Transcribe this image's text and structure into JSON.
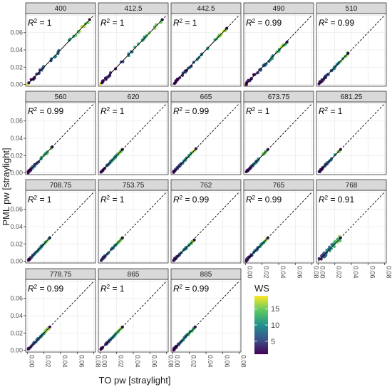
{
  "chart_data": {
    "type": "scatter",
    "layout": "faceted",
    "xlabel": "TO pw [straylight]",
    "ylabel": "PML pw [straylight]",
    "xlim": [
      -0.002,
      0.082
    ],
    "ylim": [
      -0.002,
      0.082
    ],
    "tick_values": [
      0,
      0.02,
      0.04,
      0.06,
      0.08
    ],
    "tick_labels": [
      "0.00",
      "0.02",
      "0.04",
      "0.06",
      "0.08"
    ],
    "y_tick_values": [
      0,
      0.02,
      0.04,
      0.06
    ],
    "y_tick_labels": [
      "0.00",
      "0.02",
      "0.04",
      "0.06"
    ],
    "grid": true,
    "identity_line": "dashed",
    "fit_line": "solid",
    "color_legend": {
      "title": "WS",
      "ticks": [
        5,
        10,
        15
      ],
      "range": [
        1,
        19
      ],
      "colors": [
        "#440154",
        "#3b528b",
        "#21918c",
        "#5ec962",
        "#fde725"
      ]
    },
    "panels": [
      {
        "label": "400",
        "r2": "1",
        "extent": 0.075,
        "slope": 1.0,
        "noise": 0.0015,
        "hasLow": true
      },
      {
        "label": "412.5",
        "r2": "1",
        "extent": 0.075,
        "slope": 1.0,
        "noise": 0.0015,
        "hasLow": true
      },
      {
        "label": "442.5",
        "r2": "1",
        "extent": 0.065,
        "slope": 1.0,
        "noise": 0.0012,
        "hasLow": false
      },
      {
        "label": "490",
        "r2": "0.99",
        "extent": 0.05,
        "slope": 0.98,
        "noise": 0.0015,
        "hasLow": true
      },
      {
        "label": "510",
        "r2": "0.99",
        "extent": 0.036,
        "slope": 1.0,
        "noise": 0.0012,
        "hasLow": false
      },
      {
        "label": "560",
        "r2": "0.99",
        "extent": 0.03,
        "slope": 1.0,
        "noise": 0.001,
        "hasLow": false
      },
      {
        "label": "620",
        "r2": "1",
        "extent": 0.027,
        "slope": 1.0,
        "noise": 0.0008,
        "hasLow": false
      },
      {
        "label": "665",
        "r2": "0.99",
        "extent": 0.028,
        "slope": 1.0,
        "noise": 0.0008,
        "hasLow": false
      },
      {
        "label": "673.75",
        "r2": "1",
        "extent": 0.027,
        "slope": 1.0,
        "noise": 0.0008,
        "hasLow": false
      },
      {
        "label": "681.25",
        "r2": "1",
        "extent": 0.027,
        "slope": 1.0,
        "noise": 0.0008,
        "hasLow": false
      },
      {
        "label": "708.75",
        "r2": "1",
        "extent": 0.027,
        "slope": 1.0,
        "noise": 0.0008,
        "hasLow": false
      },
      {
        "label": "753.75",
        "r2": "1",
        "extent": 0.027,
        "slope": 1.0,
        "noise": 0.0008,
        "hasLow": false
      },
      {
        "label": "762",
        "r2": "0.99",
        "extent": 0.026,
        "slope": 0.95,
        "noise": 0.001,
        "hasLow": false
      },
      {
        "label": "765",
        "r2": "0.99",
        "extent": 0.027,
        "slope": 1.0,
        "noise": 0.001,
        "hasLow": false
      },
      {
        "label": "768",
        "r2": "0.91",
        "extent": 0.027,
        "slope": 1.0,
        "noise": 0.003,
        "hasLow": false
      },
      {
        "label": "778.75",
        "r2": "0.99",
        "extent": 0.027,
        "slope": 1.0,
        "noise": 0.001,
        "hasLow": false
      },
      {
        "label": "865",
        "r2": "1",
        "extent": 0.027,
        "slope": 1.0,
        "noise": 0.0008,
        "hasLow": false
      },
      {
        "label": "885",
        "r2": "0.99",
        "extent": 0.027,
        "slope": 1.0,
        "noise": 0.001,
        "hasLow": false
      }
    ]
  }
}
